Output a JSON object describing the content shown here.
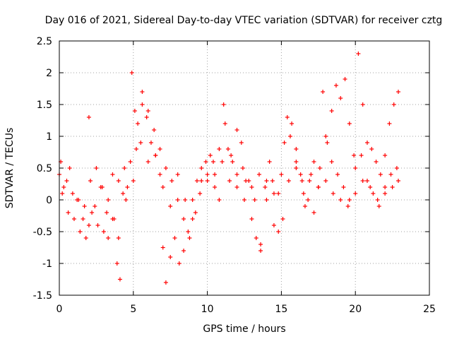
{
  "chart_data": {
    "type": "scatter",
    "title": "Day 016 of 2021, Sidereal Day-to-day VTEC variation (SDTVAR) for receiver cztg",
    "xlabel": "GPS time / hours",
    "ylabel": "SDTVAR / TECUs",
    "xlim": [
      0,
      25
    ],
    "ylim": [
      -1.5,
      2.5
    ],
    "xticks": [
      0,
      5,
      10,
      15,
      20,
      25
    ],
    "xtick_labels": [
      "0",
      "5",
      "10",
      "15",
      "20",
      "25"
    ],
    "yticks": [
      -1.5,
      -1,
      -0.5,
      0,
      0.5,
      1,
      1.5,
      2,
      2.5
    ],
    "ytick_labels": [
      "-1.5",
      "-1",
      "-0.5",
      "0",
      "0.5",
      "1",
      "1.5",
      "2",
      "2.5"
    ],
    "grid": true,
    "marker": "+",
    "color": "#ff0000",
    "series": [
      {
        "name": "SDTVAR",
        "x": [
          0.0,
          0.3,
          0.6,
          1.0,
          1.4,
          1.8,
          2.0,
          2.2,
          2.6,
          3.0,
          3.3,
          3.6,
          3.9,
          4.1,
          4.3,
          4.6,
          4.9,
          5.1,
          5.3,
          5.6,
          5.9,
          6.2,
          6.5,
          6.8,
          7.0,
          7.2,
          7.5,
          7.8,
          8.1,
          8.4,
          8.7,
          9.0,
          9.3,
          9.6,
          9.9,
          10.2,
          10.5,
          10.8,
          11.1,
          11.4,
          11.7,
          12.0,
          12.3,
          12.6,
          13.0,
          13.3,
          13.6,
          13.9,
          14.2,
          14.5,
          14.8,
          15.1,
          15.4,
          15.7,
          16.0,
          16.3,
          16.6,
          16.9,
          17.2,
          17.5,
          17.8,
          18.1,
          18.4,
          18.7,
          19.0,
          19.3,
          19.6,
          19.9,
          20.2,
          20.5,
          20.8,
          21.1,
          21.4,
          21.7,
          22.0,
          22.3,
          22.6,
          22.9,
          0.1,
          0.5,
          0.9,
          1.3,
          1.7,
          2.1,
          2.5,
          2.9,
          3.3,
          3.7,
          4.0,
          4.4,
          4.8,
          5.2,
          5.6,
          6.0,
          6.4,
          6.8,
          7.2,
          7.6,
          8.0,
          8.4,
          8.8,
          9.2,
          9.6,
          10.0,
          10.4,
          10.8,
          11.2,
          11.6,
          12.0,
          12.4,
          12.8,
          13.2,
          13.6,
          14.0,
          14.4,
          14.8,
          15.2,
          15.6,
          16.0,
          16.4,
          16.8,
          17.2,
          17.6,
          18.0,
          18.4,
          18.8,
          19.2,
          19.6,
          20.0,
          20.4,
          20.8,
          21.2,
          21.6,
          22.0,
          22.4,
          22.8,
          0.2,
          0.7,
          1.2,
          1.6,
          2.0,
          2.4,
          2.8,
          3.2,
          3.6,
          4.0,
          4.5,
          5.0,
          5.5,
          6.0,
          6.5,
          7.0,
          7.5,
          8.0,
          8.5,
          9.0,
          9.5,
          10.0,
          10.5,
          11.0,
          11.5,
          12.0,
          12.5,
          13.0,
          13.5,
          14.0,
          14.5,
          15.0,
          15.5,
          16.0,
          16.5,
          17.0,
          17.5,
          18.0,
          18.5,
          19.0,
          19.5,
          20.0,
          20.5,
          21.0,
          21.5,
          22.0,
          22.5,
          22.9
        ],
        "y": [
          0.4,
          0.2,
          -0.2,
          -0.3,
          -0.5,
          -0.6,
          1.3,
          -0.2,
          -0.4,
          -0.5,
          -0.6,
          -0.3,
          -1.0,
          -1.25,
          0.1,
          0.2,
          2.0,
          1.4,
          1.2,
          1.7,
          1.3,
          0.9,
          0.7,
          0.4,
          -0.75,
          -1.3,
          -0.9,
          -0.6,
          -1.0,
          -0.8,
          -0.5,
          0.0,
          0.3,
          0.5,
          0.6,
          0.7,
          0.4,
          0.0,
          1.5,
          0.8,
          0.6,
          1.1,
          0.9,
          0.3,
          -0.3,
          -0.6,
          -0.8,
          0.2,
          0.6,
          -0.4,
          -0.5,
          -0.3,
          1.3,
          1.2,
          0.8,
          0.4,
          -0.1,
          0.3,
          0.6,
          0.2,
          1.7,
          0.9,
          1.4,
          1.8,
          1.6,
          1.9,
          1.2,
          0.7,
          2.3,
          1.5,
          0.9,
          0.8,
          0.6,
          0.4,
          0.7,
          1.2,
          1.5,
          1.7,
          0.6,
          0.3,
          0.1,
          0.0,
          -0.1,
          0.3,
          0.5,
          0.2,
          0.0,
          -0.3,
          -0.6,
          0.5,
          0.6,
          0.8,
          1.5,
          1.4,
          1.1,
          0.8,
          0.5,
          0.3,
          0.0,
          -0.3,
          -0.6,
          -0.2,
          0.3,
          0.4,
          0.6,
          0.8,
          1.2,
          0.7,
          0.4,
          0.5,
          0.3,
          0.0,
          -0.7,
          0.0,
          0.3,
          0.1,
          0.9,
          1.0,
          0.6,
          0.3,
          0.0,
          -0.2,
          0.5,
          1.0,
          0.6,
          0.4,
          0.2,
          0.0,
          0.5,
          0.7,
          0.3,
          0.1,
          -0.1,
          0.2,
          0.4,
          0.5,
          0.1,
          0.5,
          0.0,
          -0.3,
          -0.4,
          -0.1,
          0.2,
          -0.2,
          0.4,
          0.3,
          0.0,
          0.3,
          0.9,
          0.6,
          0.7,
          0.2,
          -0.1,
          0.4,
          0.0,
          -0.3,
          0.1,
          0.3,
          0.2,
          0.6,
          0.3,
          0.2,
          0.0,
          0.2,
          0.4,
          0.3,
          0.1,
          0.4,
          0.3,
          0.5,
          0.1,
          0.4,
          0.2,
          0.3,
          0.1,
          0.0,
          -0.1,
          0.1,
          0.3,
          0.2,
          0.0,
          0.1,
          0.2,
          0.3
        ]
      }
    ]
  }
}
